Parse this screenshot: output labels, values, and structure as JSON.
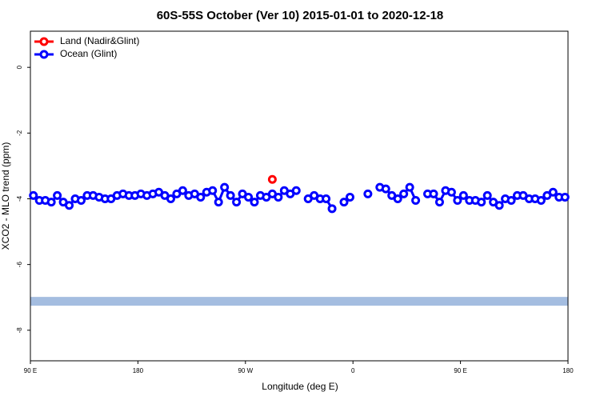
{
  "chart_data": {
    "type": "line",
    "title": "60S-55S October (Ver 10)   2015-01-01 to 2020-12-18",
    "x_label": "Longitude (deg E)",
    "y_label": "XCO2 - MLO trend (ppm)",
    "xlim": [
      90,
      540
    ],
    "xticks": [
      {
        "value": 90,
        "label": "90 E"
      },
      180,
      {
        "value": 270,
        "label": "90 W"
      },
      {
        "value": 360,
        "label": "0"
      },
      {
        "value": 450,
        "label": "90 E"
      },
      {
        "value": 540,
        "label": "180"
      }
    ],
    "ylim": [
      -8.93,
      1.1
    ],
    "yticks": [
      0,
      -2,
      -4,
      -6,
      -8
    ],
    "legend": "top-left",
    "reference_line": {
      "value": -7.12,
      "color": "#a4bde0"
    },
    "series": [
      {
        "name": "Land (Nadir&Glint)",
        "color": "#ff0000",
        "x": [
          292.5
        ],
        "values": [
          -3.41
        ]
      },
      {
        "name": "Ocean (Glint)",
        "color": "#0000ff",
        "x": [
          92.5,
          97.5,
          102.5,
          107.5,
          112.5,
          117.5,
          122.5,
          127.5,
          132.5,
          137.5,
          142.5,
          147.5,
          152.5,
          157.5,
          162.5,
          167.5,
          172.5,
          177.5,
          182.5,
          187.5,
          192.5,
          197.5,
          202.5,
          207.5,
          212.5,
          217.5,
          222.5,
          227.5,
          232.5,
          237.5,
          242.5,
          247.5,
          252.5,
          257.5,
          262.5,
          267.5,
          272.5,
          277.5,
          282.5,
          287.5,
          292.5,
          297.5,
          302.5,
          307.5,
          312.5,
          317.5,
          322.5,
          327.5,
          332.5,
          337.5,
          342.5,
          347.5,
          352.5,
          357.5,
          362.5,
          367.5,
          372.5,
          377.5,
          382.5,
          387.5,
          392.5,
          397.5,
          402.5,
          407.5,
          412.5,
          417.5,
          422.5,
          427.5,
          432.5,
          437.5,
          442.5,
          447.5,
          452.5,
          457.5,
          462.5,
          467.5,
          472.5,
          477.5,
          482.5,
          487.5,
          492.5,
          497.5,
          502.5,
          507.5,
          512.5,
          517.5,
          522.5,
          527.5,
          532.5,
          537.5
        ],
        "values": [
          -3.9,
          -4.05,
          -4.05,
          -4.1,
          -3.9,
          -4.1,
          -4.2,
          -4.0,
          -4.05,
          -3.9,
          -3.9,
          -3.95,
          -4.0,
          -4.0,
          -3.9,
          -3.85,
          -3.9,
          -3.9,
          -3.85,
          -3.9,
          -3.85,
          -3.8,
          -3.9,
          -4.0,
          -3.85,
          -3.75,
          -3.9,
          -3.85,
          -3.95,
          -3.8,
          -3.75,
          -4.1,
          -3.65,
          -3.9,
          -4.1,
          -3.85,
          -3.95,
          -4.1,
          -3.9,
          -3.95,
          -3.85,
          -3.95,
          -3.75,
          -3.85,
          -3.75,
          null,
          -4.0,
          -3.9,
          -4.0,
          -4.0,
          -4.3,
          null,
          -4.1,
          -3.95,
          null,
          null,
          -3.85,
          null,
          -3.65,
          -3.7,
          -3.9,
          -4.0,
          -3.85,
          -3.65,
          -4.05,
          null,
          -3.85,
          -3.85,
          -4.1,
          -3.75,
          -3.8,
          -4.05,
          -3.9,
          -4.05,
          -4.05,
          -4.1,
          -3.9,
          -4.1,
          -4.2,
          -4.0,
          -4.05,
          -3.9,
          -3.9,
          -4.0,
          -4.0,
          -4.05,
          -3.9,
          -3.8,
          -3.95,
          -3.95
        ]
      }
    ]
  }
}
